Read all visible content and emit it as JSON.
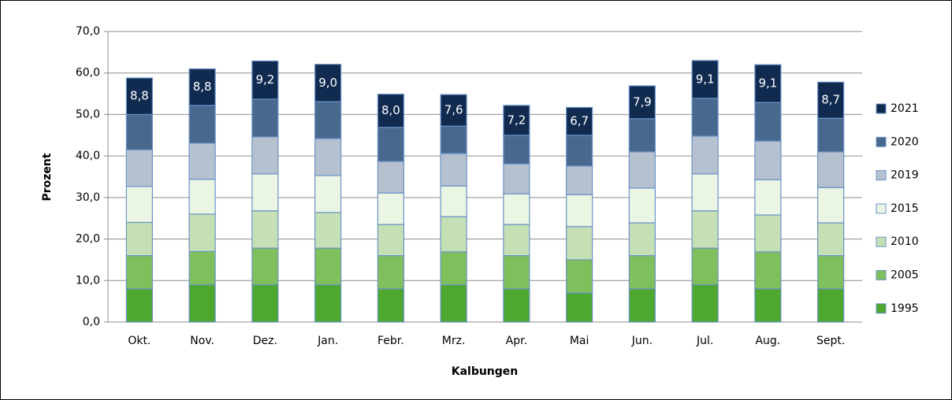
{
  "chart_data": {
    "type": "stacked-bar",
    "y_label": "Prozent",
    "x_label": "Kalbungen",
    "categories": [
      "Okt.",
      "Nov.",
      "Dez.",
      "Jan.",
      "Febr.",
      "Mrz.",
      "Apr.",
      "Mai",
      "Jun.",
      "Jul.",
      "Aug.",
      "Sept."
    ],
    "series": [
      {
        "name": "1995",
        "color": "#4ea72e",
        "values": [
          8,
          9,
          9,
          9,
          8,
          9,
          8,
          7,
          8,
          9,
          8,
          8
        ]
      },
      {
        "name": "2005",
        "color": "#7fbf5c",
        "values": [
          8,
          8,
          8.8,
          8.8,
          8,
          7.9,
          8,
          8,
          8,
          8.8,
          8.9,
          8
        ]
      },
      {
        "name": "2010",
        "color": "#c5e0b4",
        "values": [
          8,
          9,
          9,
          8.6,
          7.5,
          8.5,
          7.5,
          8,
          7.9,
          9,
          8.9,
          7.9
        ]
      },
      {
        "name": "2015",
        "color": "#ebf5e4",
        "values": [
          8.7,
          8.4,
          8.9,
          8.9,
          7.6,
          7.4,
          7.4,
          7.7,
          8.4,
          8.9,
          8.5,
          8.5
        ]
      },
      {
        "name": "2019",
        "color": "#b5c1ce",
        "values": [
          8.8,
          8.7,
          8.9,
          8.9,
          7.6,
          7.8,
          7.2,
          6.9,
          8.7,
          9.1,
          9.3,
          8.6
        ]
      },
      {
        "name": "2020",
        "color": "#48688e",
        "values": [
          8.5,
          9.1,
          9.1,
          8.9,
          8.2,
          6.6,
          6.9,
          7.4,
          8,
          9.1,
          9.3,
          8.1
        ]
      },
      {
        "name": "2021",
        "color": "#102a50",
        "values": [
          8.8,
          8.8,
          9.2,
          9.0,
          8.0,
          7.6,
          7.2,
          6.7,
          7.9,
          9.1,
          9.1,
          8.7
        ],
        "value_labels": [
          "8,8",
          "8,8",
          "9,2",
          "9,0",
          "8,0",
          "7,6",
          "7,2",
          "6,7",
          "7,9",
          "9,1",
          "9,1",
          "8,7"
        ]
      }
    ],
    "ylim": [
      0,
      70
    ],
    "yticks": [
      {
        "value": 0,
        "label": "0,0"
      },
      {
        "value": 10,
        "label": "10,0"
      },
      {
        "value": 20,
        "label": "20,0"
      },
      {
        "value": 30,
        "label": "30,0"
      },
      {
        "value": 40,
        "label": "40,0"
      },
      {
        "value": 50,
        "label": "50,0"
      },
      {
        "value": 60,
        "label": "60,0"
      },
      {
        "value": 70,
        "label": "70,0"
      }
    ],
    "grid": true,
    "legend": "right"
  }
}
